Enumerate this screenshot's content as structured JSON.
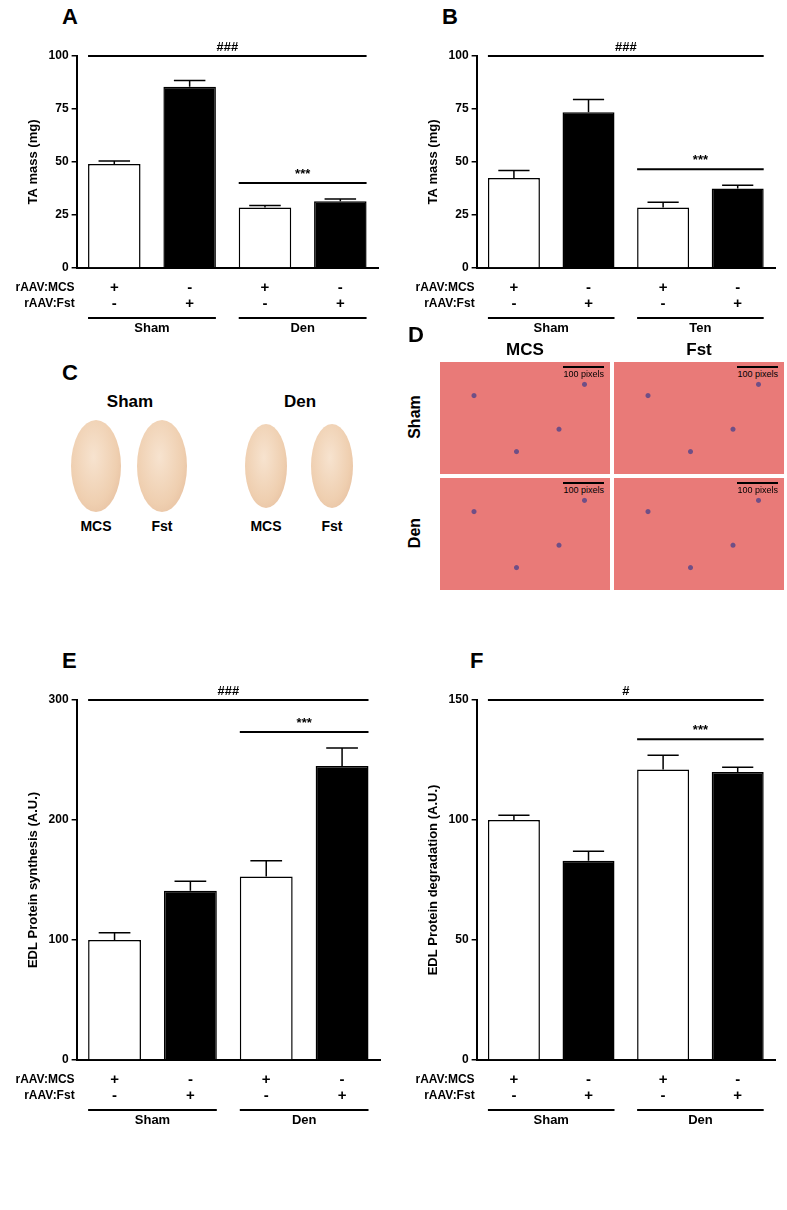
{
  "chart_data": [
    {
      "panel": "A",
      "type": "bar",
      "categories": [
        null,
        null,
        null,
        null
      ],
      "values": [
        49,
        85.5,
        28.5,
        31.5
      ],
      "errors": [
        1.5,
        3,
        1,
        1
      ],
      "colors": [
        "#ffffff",
        "#000000",
        "#ffffff",
        "#000000"
      ],
      "ylabel": "TA mass (mg)",
      "ylim": [
        0,
        100
      ],
      "yticks": [
        0,
        25,
        50,
        75,
        100
      ],
      "grid": false,
      "rows": [
        {
          "label": "rAAV:MCS",
          "marks": [
            "+",
            "-",
            "+",
            "-"
          ]
        },
        {
          "label": "rAAV:Fst",
          "marks": [
            "-",
            "+",
            "-",
            "+"
          ]
        }
      ],
      "groups": [
        {
          "label": "Sham",
          "size": 2
        },
        {
          "label": "Den",
          "size": 2
        }
      ],
      "annotations": [
        {
          "text": "###",
          "from": 0,
          "to": 3
        },
        {
          "text": "***",
          "from": 2,
          "to": 3
        }
      ]
    },
    {
      "panel": "B",
      "type": "bar",
      "categories": [
        null,
        null,
        null,
        null
      ],
      "values": [
        42.5,
        73.5,
        28.5,
        37.5
      ],
      "errors": [
        3.5,
        6,
        2.5,
        1.5
      ],
      "colors": [
        "#ffffff",
        "#000000",
        "#ffffff",
        "#000000"
      ],
      "ylabel": "TA mass (mg)",
      "ylim": [
        0,
        100
      ],
      "yticks": [
        0,
        25,
        50,
        75,
        100
      ],
      "grid": false,
      "rows": [
        {
          "label": "rAAV:MCS",
          "marks": [
            "+",
            "-",
            "+",
            "-"
          ]
        },
        {
          "label": "rAAV:Fst",
          "marks": [
            "-",
            "+",
            "-",
            "+"
          ]
        }
      ],
      "groups": [
        {
          "label": "Sham",
          "size": 2
        },
        {
          "label": "Ten",
          "size": 2
        }
      ],
      "annotations": [
        {
          "text": "###",
          "from": 0,
          "to": 3
        },
        {
          "text": "***",
          "from": 2,
          "to": 3
        }
      ]
    },
    {
      "panel": "E",
      "type": "bar",
      "categories": [
        null,
        null,
        null,
        null
      ],
      "values": [
        100,
        141,
        153,
        245
      ],
      "errors": [
        6,
        8,
        13,
        15
      ],
      "colors": [
        "#ffffff",
        "#000000",
        "#ffffff",
        "#000000"
      ],
      "ylabel": "EDL Protein synthesis (A.U.)",
      "ylim": [
        0,
        300
      ],
      "yticks": [
        0,
        100,
        200,
        300
      ],
      "grid": false,
      "rows": [
        {
          "label": "rAAV:MCS",
          "marks": [
            "+",
            "-",
            "+",
            "-"
          ]
        },
        {
          "label": "rAAV:Fst",
          "marks": [
            "-",
            "+",
            "-",
            "+"
          ]
        }
      ],
      "groups": [
        {
          "label": "Sham",
          "size": 2
        },
        {
          "label": "Den",
          "size": 2
        }
      ],
      "annotations": [
        {
          "text": "###",
          "from": 0,
          "to": 3
        },
        {
          "text": "***",
          "from": 2,
          "to": 3
        }
      ]
    },
    {
      "panel": "F",
      "type": "bar",
      "categories": [
        null,
        null,
        null,
        null
      ],
      "values": [
        100,
        83,
        121,
        120
      ],
      "errors": [
        2,
        4,
        6,
        2
      ],
      "colors": [
        "#ffffff",
        "#000000",
        "#ffffff",
        "#000000"
      ],
      "ylabel": "EDL Protein degradation (A.U.)",
      "ylim": [
        0,
        150
      ],
      "yticks": [
        0,
        50,
        100,
        150
      ],
      "grid": false,
      "rows": [
        {
          "label": "rAAV:MCS",
          "marks": [
            "+",
            "-",
            "+",
            "-"
          ]
        },
        {
          "label": "rAAV:Fst",
          "marks": [
            "-",
            "+",
            "-",
            "+"
          ]
        }
      ],
      "groups": [
        {
          "label": "Sham",
          "size": 2
        },
        {
          "label": "Den",
          "size": 2
        }
      ],
      "annotations": [
        {
          "text": "#",
          "from": 0,
          "to": 3
        },
        {
          "text": "***",
          "from": 2,
          "to": 3
        }
      ]
    }
  ],
  "photo_panels": {
    "C": {
      "panel": "C",
      "groups": [
        {
          "title": "Sham",
          "items": [
            "MCS",
            "Fst"
          ]
        },
        {
          "title": "Den",
          "items": [
            "MCS",
            "Fst"
          ]
        }
      ]
    },
    "D": {
      "panel": "D",
      "columns": [
        "MCS",
        "Fst"
      ],
      "rows": [
        "Sham",
        "Den"
      ],
      "scale_bar": "100 pixels"
    }
  }
}
